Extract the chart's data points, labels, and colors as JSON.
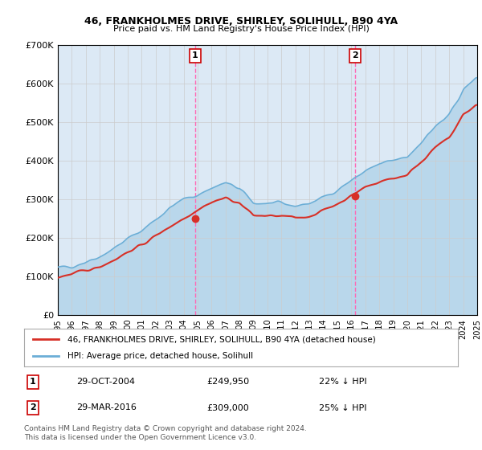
{
  "title": "46, FRANKHOLMES DRIVE, SHIRLEY, SOLIHULL, B90 4YA",
  "subtitle": "Price paid vs. HM Land Registry's House Price Index (HPI)",
  "legend_line1": "46, FRANKHOLMES DRIVE, SHIRLEY, SOLIHULL, B90 4YA (detached house)",
  "legend_line2": "HPI: Average price, detached house, Solihull",
  "footnote": "Contains HM Land Registry data © Crown copyright and database right 2024.\nThis data is licensed under the Open Government Licence v3.0.",
  "marker1_date": "29-OCT-2004",
  "marker1_price": 249950,
  "marker1_label": "22% ↓ HPI",
  "marker1_year": 2004.83,
  "marker2_date": "29-MAR-2016",
  "marker2_price": 309000,
  "marker2_label": "25% ↓ HPI",
  "marker2_year": 2016.25,
  "xmin": 1995,
  "xmax": 2025,
  "ymin": 0,
  "ymax": 700000,
  "yticks": [
    0,
    100000,
    200000,
    300000,
    400000,
    500000,
    600000,
    700000
  ],
  "ytick_labels": [
    "£0",
    "£100K",
    "£200K",
    "£300K",
    "£400K",
    "£500K",
    "£600K",
    "£700K"
  ],
  "xticks": [
    1995,
    1996,
    1997,
    1998,
    1999,
    2000,
    2001,
    2002,
    2003,
    2004,
    2005,
    2006,
    2007,
    2008,
    2009,
    2010,
    2011,
    2012,
    2013,
    2014,
    2015,
    2016,
    2017,
    2018,
    2019,
    2020,
    2021,
    2022,
    2023,
    2024,
    2025
  ],
  "hpi_color": "#6baed6",
  "price_color": "#d73027",
  "marker_color": "#d73027",
  "vline_color": "#ff69b4",
  "background_color": "#dce9f5",
  "plot_bg_color": "#ffffff",
  "grid_color": "#cccccc"
}
